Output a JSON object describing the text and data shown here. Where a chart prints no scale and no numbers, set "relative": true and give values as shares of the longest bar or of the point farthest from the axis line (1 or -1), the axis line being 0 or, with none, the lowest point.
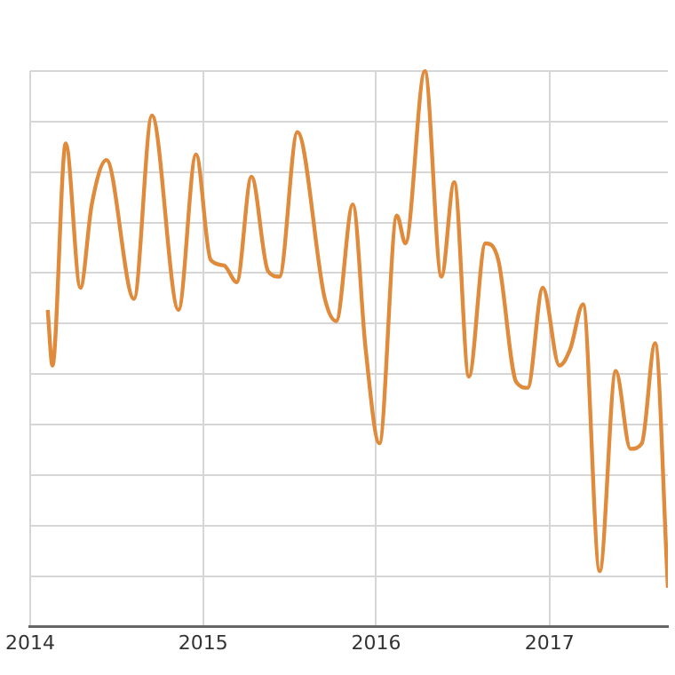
{
  "chart_data": {
    "type": "line",
    "relative": true,
    "x": [
      "2014-02-07",
      "2014-02-17",
      "2014-03-17",
      "2014-04-17",
      "2014-05-11",
      "2014-06-11",
      "2014-08-08",
      "2014-09-15",
      "2014-11-10",
      "2014-12-17",
      "2015-01-17",
      "2015-02-14",
      "2015-03-13",
      "2015-04-13",
      "2015-05-18",
      "2015-06-11",
      "2015-07-19",
      "2015-09-15",
      "2015-10-09",
      "2015-11-13",
      "2015-12-10",
      "2016-01-08",
      "2016-02-14",
      "2016-03-03",
      "2016-04-13",
      "2016-05-18",
      "2016-06-14",
      "2016-07-15",
      "2016-08-19",
      "2016-09-15",
      "2016-10-23",
      "2016-11-16",
      "2016-12-18",
      "2017-01-22",
      "2017-02-14",
      "2017-03-13",
      "2017-04-17",
      "2017-05-21",
      "2017-06-21",
      "2017-07-15",
      "2017-08-12",
      "2017-09-08"
    ],
    "series": [
      {
        "color": "#e08a3c",
        "values": [
          0.57,
          0.47,
          0.87,
          0.61,
          0.76,
          0.84,
          0.59,
          0.92,
          0.57,
          0.85,
          0.66,
          0.65,
          0.62,
          0.81,
          0.64,
          0.63,
          0.89,
          0.59,
          0.55,
          0.76,
          0.5,
          0.33,
          0.74,
          0.69,
          1.0,
          0.63,
          0.8,
          0.45,
          0.69,
          0.66,
          0.44,
          0.43,
          0.61,
          0.47,
          0.5,
          0.58,
          0.1,
          0.46,
          0.32,
          0.33,
          0.51,
          0.07
        ]
      }
    ],
    "xlim": [
      "2014-01-01",
      "2017-09-08"
    ],
    "xticks": [
      "2014",
      "2015",
      "2016",
      "2017"
    ],
    "grid": true,
    "legend": false,
    "marker": "none",
    "line_style": "solid"
  }
}
